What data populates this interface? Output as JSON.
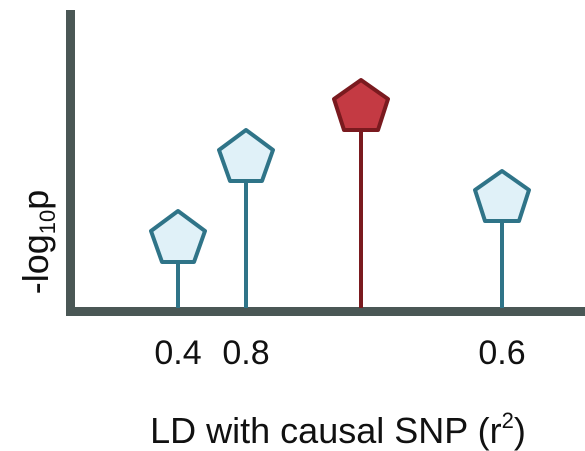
{
  "diagram": {
    "y_axis": {
      "prefix": "-log",
      "subscript": "10",
      "suffix": "p"
    },
    "x_axis": {
      "label_main": "LD with causal SNP (r",
      "label_sup": "2",
      "label_end": ")"
    },
    "snps": [
      {
        "id": "snp-1",
        "ld_label": "0.4",
        "causal": false
      },
      {
        "id": "snp-2",
        "ld_label": "0.8",
        "causal": false
      },
      {
        "id": "snp-causal",
        "ld_label": "",
        "causal": true
      },
      {
        "id": "snp-4",
        "ld_label": "0.6",
        "causal": false
      }
    ],
    "colors": {
      "axis": "#4a5755",
      "snp_fill": "#e0f1f8",
      "snp_stroke": "#2f7488",
      "causal_fill": "#c43a43",
      "causal_stroke": "#7a1a1f",
      "text": "#111111"
    }
  }
}
